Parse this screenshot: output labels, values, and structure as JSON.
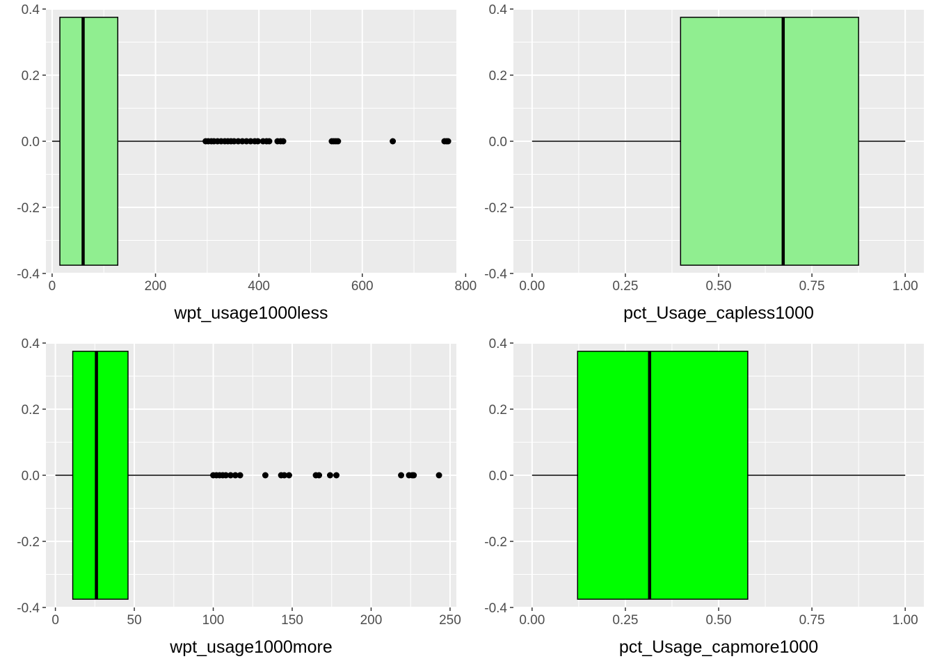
{
  "chart_data": [
    {
      "type": "boxplot",
      "orientation": "horizontal",
      "xlabel": "wpt_usage1000less",
      "xlim": [
        -12,
        782
      ],
      "xticks": [
        0,
        200,
        400,
        600,
        800
      ],
      "xtick_labels": [
        "0",
        "200",
        "400",
        "600",
        "800"
      ],
      "ylim": [
        -0.4,
        0.4
      ],
      "yticks": [
        -0.4,
        -0.2,
        0.0,
        0.2,
        0.4
      ],
      "ytick_labels": [
        "-0.4",
        "-0.2",
        "0.0",
        "0.2",
        "0.4"
      ],
      "box": {
        "whisker_low": 0,
        "q1": 15,
        "median": 60,
        "q3": 127,
        "whisker_high": 295,
        "ymin": -0.375,
        "ymax": 0.375
      },
      "outliers": [
        297,
        302,
        308,
        313,
        320,
        327,
        334,
        340,
        346,
        352,
        360,
        368,
        376,
        384,
        392,
        398,
        408,
        415,
        420,
        436,
        442,
        447,
        541,
        545,
        549,
        553,
        659,
        759,
        763,
        766
      ],
      "fill": "#90ee90",
      "grid": true
    },
    {
      "type": "boxplot",
      "orientation": "horizontal",
      "xlabel": "pct_Usage_capless1000",
      "xlim": [
        -0.05,
        1.05
      ],
      "xticks": [
        0,
        0.25,
        0.5,
        0.75,
        1.0
      ],
      "xtick_labels": [
        "0.00",
        "0.25",
        "0.50",
        "0.75",
        "1.00"
      ],
      "ylim": [
        -0.4,
        0.4
      ],
      "yticks": [
        -0.4,
        -0.2,
        0.0,
        0.2,
        0.4
      ],
      "ytick_labels": [
        "-0.4",
        "-0.2",
        "0.0",
        "0.2",
        "0.4"
      ],
      "box": {
        "whisker_low": 0,
        "q1": 0.398,
        "median": 0.673,
        "q3": 0.875,
        "whisker_high": 1.0,
        "ymin": -0.375,
        "ymax": 0.375
      },
      "outliers": [],
      "fill": "#90ee90",
      "grid": true
    },
    {
      "type": "boxplot",
      "orientation": "horizontal",
      "xlabel": "wpt_usage1000more",
      "xlim": [
        -6,
        254
      ],
      "xticks": [
        0,
        50,
        100,
        150,
        200,
        250
      ],
      "xtick_labels": [
        "0",
        "50",
        "100",
        "150",
        "200",
        "250"
      ],
      "ylim": [
        -0.4,
        0.4
      ],
      "yticks": [
        -0.4,
        -0.2,
        0.0,
        0.2,
        0.4
      ],
      "ytick_labels": [
        "-0.4",
        "-0.2",
        "0.0",
        "0.2",
        "0.4"
      ],
      "box": {
        "whisker_low": 0,
        "q1": 11,
        "median": 26,
        "q3": 46,
        "whisker_high": 99,
        "ymin": -0.375,
        "ymax": 0.375
      },
      "outliers": [
        100,
        102,
        104,
        106,
        108,
        111,
        114,
        117,
        133,
        143,
        145,
        148,
        165,
        167,
        174,
        178,
        219,
        224,
        226,
        227,
        243
      ],
      "fill": "#00ff00",
      "grid": true
    },
    {
      "type": "boxplot",
      "orientation": "horizontal",
      "xlabel": "pct_Usage_capmore1000",
      "xlim": [
        -0.05,
        1.05
      ],
      "xticks": [
        0,
        0.25,
        0.5,
        0.75,
        1.0
      ],
      "xtick_labels": [
        "0.00",
        "0.25",
        "0.50",
        "0.75",
        "1.00"
      ],
      "ylim": [
        -0.4,
        0.4
      ],
      "yticks": [
        -0.4,
        -0.2,
        0.0,
        0.2,
        0.4
      ],
      "ytick_labels": [
        "-0.4",
        "-0.2",
        "0.0",
        "0.2",
        "0.4"
      ],
      "box": {
        "whisker_low": 0,
        "q1": 0.122,
        "median": 0.315,
        "q3": 0.578,
        "whisker_high": 1.0,
        "ymin": -0.375,
        "ymax": 0.375
      },
      "outliers": [],
      "fill": "#00ff00",
      "grid": true
    }
  ]
}
